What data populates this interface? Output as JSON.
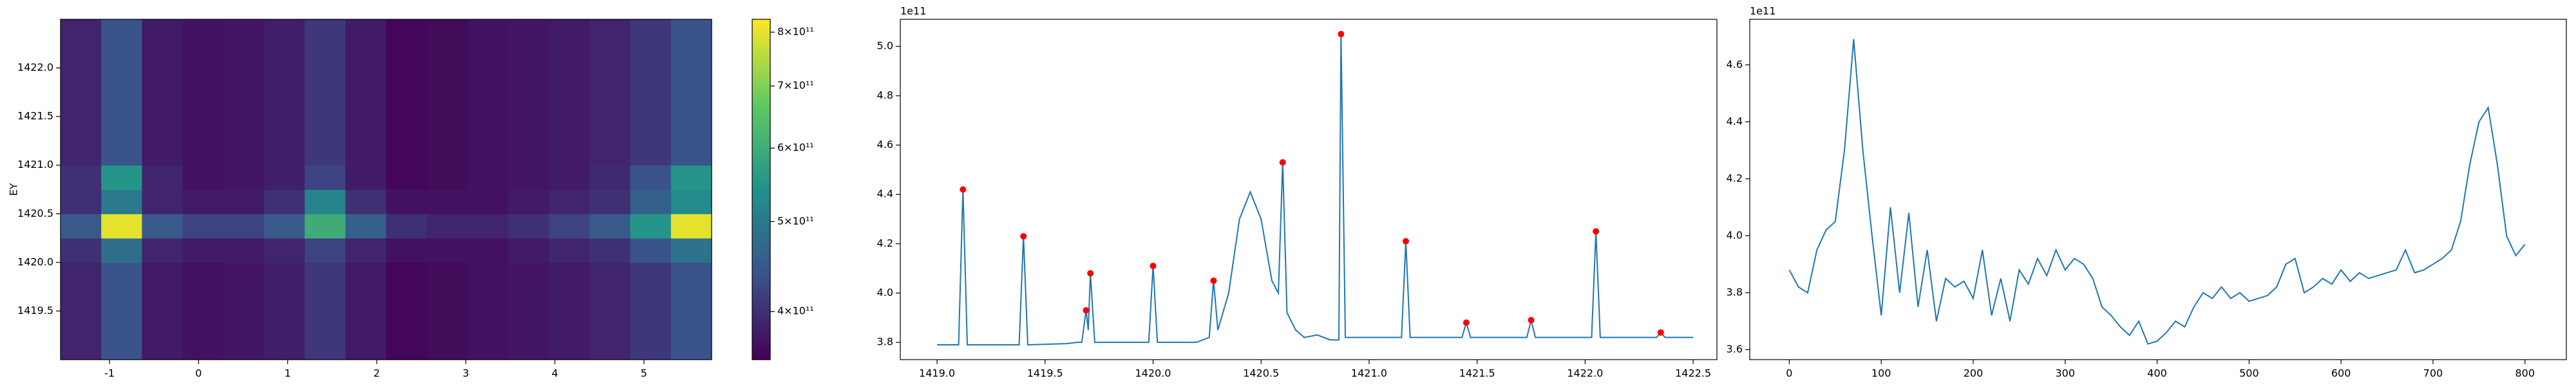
{
  "chart_data": [
    {
      "type": "heatmap",
      "ylabel": "EY",
      "xlim": [
        -1.55,
        5.76
      ],
      "ylim": [
        1419.0,
        1422.5
      ],
      "xticks": [
        -1,
        0,
        1,
        2,
        3,
        4,
        5
      ],
      "yticks": [
        1419.5,
        {
          "value": 1420,
          "label": "1420.0"
        },
        1420.5,
        {
          "value": 1421,
          "label": "1421.0"
        },
        1421.5,
        {
          "value": 1422,
          "label": "1422.0"
        }
      ],
      "z": [
        [
          390000000000.0,
          440000000000.0,
          380000000000.0,
          370000000000.0,
          375000000000.0,
          385000000000.0,
          410000000000.0,
          380000000000.0,
          360000000000.0,
          365000000000.0,
          370000000000.0,
          375000000000.0,
          380000000000.0,
          390000000000.0,
          410000000000.0,
          440000000000.0
        ],
        [
          390000000000.0,
          440000000000.0,
          380000000000.0,
          370000000000.0,
          375000000000.0,
          385000000000.0,
          410000000000.0,
          380000000000.0,
          360000000000.0,
          365000000000.0,
          370000000000.0,
          375000000000.0,
          380000000000.0,
          390000000000.0,
          410000000000.0,
          440000000000.0
        ],
        [
          390000000000.0,
          440000000000.0,
          380000000000.0,
          370000000000.0,
          375000000000.0,
          385000000000.0,
          410000000000.0,
          380000000000.0,
          360000000000.0,
          365000000000.0,
          370000000000.0,
          375000000000.0,
          380000000000.0,
          390000000000.0,
          410000000000.0,
          440000000000.0
        ],
        [
          390000000000.0,
          440000000000.0,
          380000000000.0,
          370000000000.0,
          375000000000.0,
          385000000000.0,
          410000000000.0,
          380000000000.0,
          360000000000.0,
          365000000000.0,
          370000000000.0,
          375000000000.0,
          380000000000.0,
          390000000000.0,
          410000000000.0,
          440000000000.0
        ],
        [
          400000000000.0,
          480000000000.0,
          390000000000.0,
          380000000000.0,
          380000000000.0,
          390000000000.0,
          420000000000.0,
          390000000000.0,
          370000000000.0,
          370000000000.0,
          370000000000.0,
          380000000000.0,
          390000000000.0,
          400000000000.0,
          440000000000.0,
          490000000000.0
        ],
        [
          450000000000.0,
          800000000000.0,
          450000000000.0,
          420000000000.0,
          420000000000.0,
          450000000000.0,
          600000000000.0,
          460000000000.0,
          400000000000.0,
          390000000000.0,
          390000000000.0,
          400000000000.0,
          420000000000.0,
          450000000000.0,
          550000000000.0,
          800000000000.0
        ],
        [
          400000000000.0,
          500000000000.0,
          390000000000.0,
          380000000000.0,
          380000000000.0,
          400000000000.0,
          520000000000.0,
          400000000000.0,
          370000000000.0,
          370000000000.0,
          370000000000.0,
          380000000000.0,
          390000000000.0,
          400000000000.0,
          460000000000.0,
          530000000000.0
        ],
        [
          400000000000.0,
          550000000000.0,
          390000000000.0,
          370000000000.0,
          375000000000.0,
          385000000000.0,
          420000000000.0,
          380000000000.0,
          360000000000.0,
          365000000000.0,
          370000000000.0,
          375000000000.0,
          380000000000.0,
          395000000000.0,
          440000000000.0,
          550000000000.0
        ],
        [
          390000000000.0,
          440000000000.0,
          380000000000.0,
          370000000000.0,
          375000000000.0,
          385000000000.0,
          410000000000.0,
          380000000000.0,
          360000000000.0,
          365000000000.0,
          370000000000.0,
          375000000000.0,
          380000000000.0,
          390000000000.0,
          410000000000.0,
          440000000000.0
        ],
        [
          390000000000.0,
          440000000000.0,
          380000000000.0,
          370000000000.0,
          375000000000.0,
          385000000000.0,
          410000000000.0,
          380000000000.0,
          360000000000.0,
          365000000000.0,
          370000000000.0,
          375000000000.0,
          380000000000.0,
          390000000000.0,
          410000000000.0,
          440000000000.0
        ],
        [
          390000000000.0,
          440000000000.0,
          380000000000.0,
          370000000000.0,
          375000000000.0,
          385000000000.0,
          410000000000.0,
          380000000000.0,
          360000000000.0,
          365000000000.0,
          370000000000.0,
          375000000000.0,
          380000000000.0,
          390000000000.0,
          410000000000.0,
          440000000000.0
        ],
        [
          390000000000.0,
          440000000000.0,
          380000000000.0,
          370000000000.0,
          375000000000.0,
          385000000000.0,
          410000000000.0,
          380000000000.0,
          360000000000.0,
          365000000000.0,
          370000000000.0,
          375000000000.0,
          380000000000.0,
          390000000000.0,
          410000000000.0,
          440000000000.0
        ],
        [
          390000000000.0,
          440000000000.0,
          380000000000.0,
          370000000000.0,
          375000000000.0,
          385000000000.0,
          410000000000.0,
          380000000000.0,
          360000000000.0,
          365000000000.0,
          370000000000.0,
          375000000000.0,
          380000000000.0,
          390000000000.0,
          410000000000.0,
          440000000000.0
        ],
        [
          390000000000.0,
          440000000000.0,
          380000000000.0,
          370000000000.0,
          375000000000.0,
          385000000000.0,
          410000000000.0,
          380000000000.0,
          360000000000.0,
          365000000000.0,
          370000000000.0,
          375000000000.0,
          380000000000.0,
          390000000000.0,
          410000000000.0,
          440000000000.0
        ]
      ],
      "colorbar": {
        "scale": "log",
        "lim": [
          355000000000.0,
          826000000000.0
        ],
        "ticks": [
          {
            "value": 400000000000.0,
            "label": "4×10¹¹"
          },
          {
            "value": 500000000000.0,
            "label": "5×10¹¹"
          },
          {
            "value": 600000000000.0,
            "label": "6×10¹¹"
          },
          {
            "value": 700000000000.0,
            "label": "7×10¹¹"
          },
          {
            "value": 800000000000.0,
            "label": "8×10¹¹"
          }
        ]
      }
    },
    {
      "type": "line",
      "offset_text": "1e11",
      "color": "#1f77b4",
      "xlim": [
        1418.83,
        1422.61
      ],
      "ylim": [
        3.73,
        5.11
      ],
      "xticks": [
        {
          "value": 1419,
          "label": "1419.0"
        },
        1419.5,
        {
          "value": 1420,
          "label": "1420.0"
        },
        1420.5,
        {
          "value": 1421,
          "label": "1421.0"
        },
        1421.5,
        {
          "value": 1422,
          "label": "1422.0"
        },
        1422.5
      ],
      "yticks": [
        3.8,
        {
          "value": 4,
          "label": "4.0"
        },
        4.2,
        4.4,
        4.6,
        4.8,
        {
          "value": 5,
          "label": "5.0"
        }
      ],
      "x": [
        1419.0,
        1419.1,
        1419.12,
        1419.14,
        1419.38,
        1419.4,
        1419.42,
        1419.6,
        1419.65,
        1419.67,
        1419.69,
        1419.7,
        1419.71,
        1419.73,
        1419.98,
        1420.0,
        1420.02,
        1420.2,
        1420.26,
        1420.28,
        1420.3,
        1420.35,
        1420.4,
        1420.45,
        1420.5,
        1420.55,
        1420.58,
        1420.6,
        1420.62,
        1420.66,
        1420.7,
        1420.76,
        1420.82,
        1420.86,
        1420.87,
        1420.89,
        1421.15,
        1421.17,
        1421.19,
        1421.43,
        1421.45,
        1421.47,
        1421.73,
        1421.75,
        1421.77,
        1422.03,
        1422.05,
        1422.07,
        1422.33,
        1422.35,
        1422.37,
        1422.5
      ],
      "values": [
        3.79,
        3.79,
        4.42,
        3.79,
        3.79,
        4.23,
        3.79,
        3.795,
        3.8,
        3.8,
        3.93,
        3.85,
        4.08,
        3.8,
        3.8,
        4.11,
        3.8,
        3.8,
        3.82,
        4.05,
        3.85,
        4.0,
        4.3,
        4.41,
        4.3,
        4.05,
        4.0,
        4.53,
        3.92,
        3.85,
        3.82,
        3.83,
        3.81,
        3.81,
        5.05,
        3.82,
        3.82,
        4.21,
        3.82,
        3.82,
        3.88,
        3.82,
        3.82,
        3.89,
        3.82,
        3.82,
        4.25,
        3.82,
        3.82,
        3.84,
        3.82,
        3.82
      ],
      "peaks": {
        "color": "#ff0000",
        "x": [
          1419.12,
          1419.4,
          1419.69,
          1419.71,
          1420.0,
          1420.28,
          1420.6,
          1420.87,
          1421.17,
          1421.45,
          1421.75,
          1422.05,
          1422.35
        ],
        "values": [
          4.42,
          4.23,
          3.93,
          4.08,
          4.11,
          4.05,
          4.53,
          5.05,
          4.21,
          3.88,
          3.89,
          4.25,
          3.84
        ]
      }
    },
    {
      "type": "line",
      "offset_text": "1e11",
      "color": "#1f77b4",
      "xlim": [
        -43,
        845
      ],
      "ylim": [
        3.565,
        4.76
      ],
      "xticks": [
        0,
        100,
        200,
        300,
        400,
        500,
        600,
        700,
        800
      ],
      "yticks": [
        3.6,
        3.8,
        {
          "value": 4,
          "label": "4.0"
        },
        4.2,
        4.4,
        4.6
      ],
      "x": [
        0,
        10,
        20,
        30,
        40,
        50,
        60,
        70,
        80,
        90,
        100,
        110,
        120,
        130,
        140,
        150,
        160,
        170,
        180,
        190,
        200,
        210,
        220,
        230,
        240,
        250,
        260,
        270,
        280,
        290,
        300,
        310,
        320,
        330,
        340,
        350,
        360,
        370,
        380,
        390,
        400,
        410,
        420,
        430,
        440,
        450,
        460,
        470,
        480,
        490,
        500,
        510,
        520,
        530,
        540,
        550,
        560,
        570,
        580,
        590,
        600,
        610,
        620,
        630,
        640,
        650,
        660,
        670,
        680,
        690,
        700,
        710,
        720,
        730,
        740,
        750,
        760,
        770,
        780,
        790,
        800
      ],
      "values": [
        3.88,
        3.82,
        3.8,
        3.95,
        4.02,
        4.05,
        4.3,
        4.69,
        4.3,
        4.0,
        3.72,
        4.1,
        3.8,
        4.08,
        3.75,
        3.95,
        3.7,
        3.85,
        3.82,
        3.84,
        3.78,
        3.95,
        3.72,
        3.85,
        3.7,
        3.88,
        3.83,
        3.92,
        3.86,
        3.95,
        3.88,
        3.92,
        3.9,
        3.85,
        3.75,
        3.72,
        3.68,
        3.65,
        3.7,
        3.62,
        3.63,
        3.66,
        3.7,
        3.68,
        3.75,
        3.8,
        3.78,
        3.82,
        3.78,
        3.8,
        3.77,
        3.78,
        3.79,
        3.82,
        3.9,
        3.92,
        3.8,
        3.82,
        3.85,
        3.83,
        3.88,
        3.84,
        3.87,
        3.85,
        3.86,
        3.87,
        3.88,
        3.95,
        3.87,
        3.88,
        3.9,
        3.92,
        3.95,
        4.05,
        4.25,
        4.4,
        4.45,
        4.25,
        4.0,
        3.93,
        3.97
      ]
    }
  ]
}
